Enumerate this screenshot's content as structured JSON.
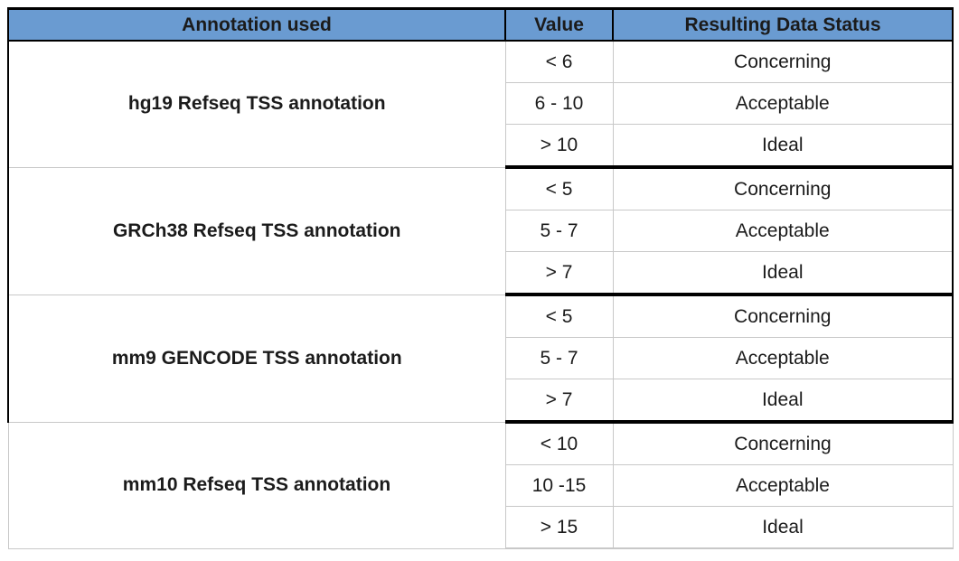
{
  "table": {
    "header": {
      "annotation": "Annotation used",
      "value": "Value",
      "status": "Resulting Data Status"
    },
    "groups": [
      {
        "name": "hg19 Refseq TSS annotation",
        "rows": [
          {
            "value": "< 6",
            "status": "Concerning"
          },
          {
            "value": "6 - 10",
            "status": "Acceptable"
          },
          {
            "value": "> 10",
            "status": "Ideal"
          }
        ]
      },
      {
        "name": "GRCh38 Refseq TSS annotation",
        "rows": [
          {
            "value": "< 5",
            "status": "Concerning"
          },
          {
            "value": "5 - 7",
            "status": "Acceptable"
          },
          {
            "value": "> 7",
            "status": "Ideal"
          }
        ]
      },
      {
        "name": "mm9 GENCODE TSS annotation",
        "rows": [
          {
            "value": "< 5",
            "status": "Concerning"
          },
          {
            "value": "5 - 7",
            "status": "Acceptable"
          },
          {
            "value": "> 7",
            "status": "Ideal"
          }
        ]
      },
      {
        "name": "mm10 Refseq TSS annotation",
        "rows": [
          {
            "value": "< 10",
            "status": "Concerning"
          },
          {
            "value": "10 -15",
            "status": "Acceptable"
          },
          {
            "value": "> 15",
            "status": "Ideal"
          }
        ]
      }
    ],
    "colors": {
      "header_bg": "#6A9BD1",
      "border_black": "#000000",
      "border_gray": "#C8C8C8"
    }
  }
}
